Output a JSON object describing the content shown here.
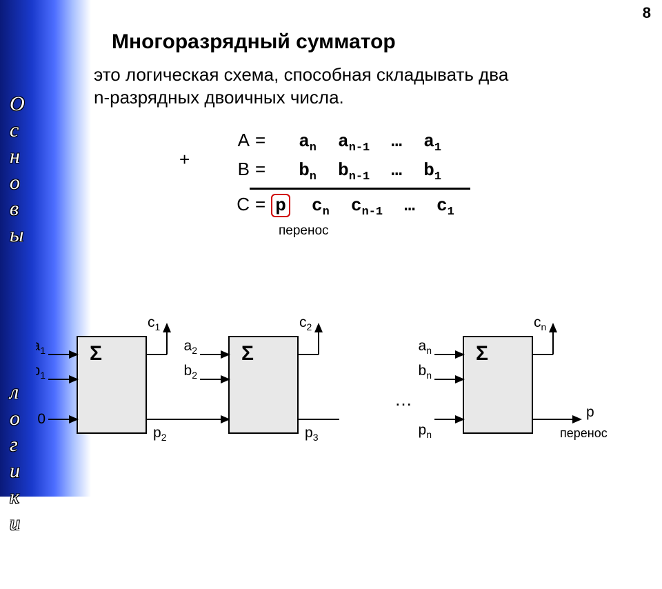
{
  "page_number": "8",
  "sidebar": {
    "line1": "Основы",
    "line2": "логики"
  },
  "title": "Многоразрядный сумматор",
  "description_l1": "это логическая схема, способная складывать два",
  "description_l2": "n-разрядных двоичных числа.",
  "formula": {
    "plus": "+",
    "A_label": "A",
    "B_label": "B",
    "C_label": "C",
    "eq": "=",
    "a_n": "a",
    "a_nm1": "a",
    "a_1": "a",
    "b_n": "b",
    "b_nm1": "b",
    "b_1": "b",
    "c_n": "c",
    "c_nm1": "c",
    "c_1": "c",
    "p": "p",
    "ellipsis": "…",
    "sub_n": "n",
    "sub_nm1": "n-1",
    "sub_1": "1",
    "perenos": "перенос"
  },
  "diagram": {
    "sigma": "Σ",
    "ellipsis": "…",
    "box_fill": "#e8e8e8",
    "box_stroke": "#000000",
    "box_stroke_width": 2,
    "line_stroke": "#000000",
    "line_width": 2,
    "arrow_size": 7,
    "perenos": "перенос",
    "blocks": [
      {
        "in_a": "a",
        "in_a_sub": "1",
        "in_b": "b",
        "in_b_sub": "1",
        "carry_in": "0",
        "carry_in_sub": "",
        "out_c": "c",
        "out_c_sub": "1",
        "carry_out": "p",
        "carry_out_sub": "2"
      },
      {
        "in_a": "a",
        "in_a_sub": "2",
        "in_b": "b",
        "in_b_sub": "2",
        "carry_in": "",
        "carry_in_sub": "",
        "out_c": "c",
        "out_c_sub": "2",
        "carry_out": "p",
        "carry_out_sub": "3"
      },
      {
        "in_a": "a",
        "in_a_sub": "n",
        "in_b": "b",
        "in_b_sub": "n",
        "carry_in": "p",
        "carry_in_sub": "n",
        "out_c": "c",
        "out_c_sub": "n",
        "carry_out": "p",
        "carry_out_sub": ""
      }
    ]
  },
  "colors": {
    "sidebar_start": "#0a1a7a",
    "sidebar_end": "#ffffff",
    "text": "#000000",
    "highlight_box": "#d00000",
    "bg": "#ffffff"
  },
  "typography": {
    "title_fontsize": 30,
    "body_fontsize": 26,
    "label_fontsize": 21
  }
}
